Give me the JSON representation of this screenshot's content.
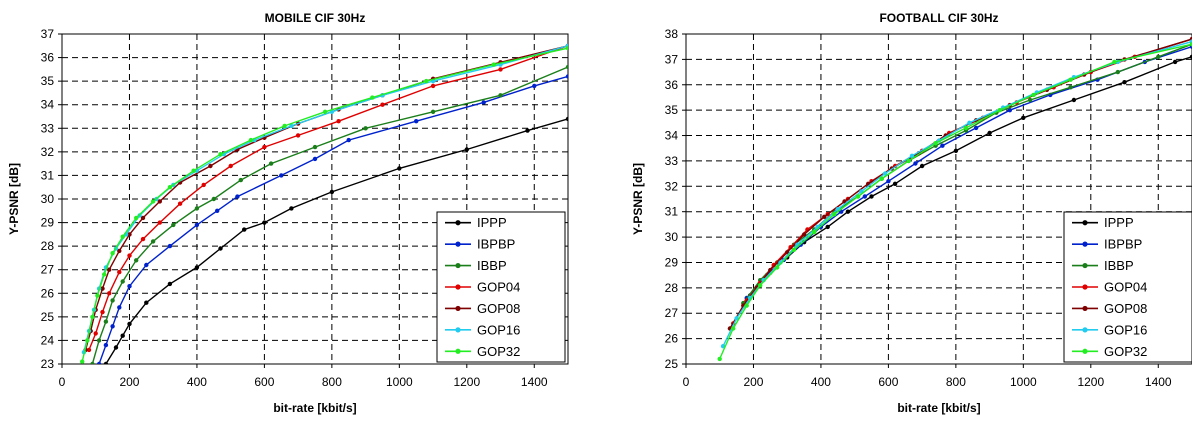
{
  "chart_data": [
    {
      "type": "line",
      "title": "MOBILE CIF 30Hz",
      "xlabel": "bit-rate [kbit/s]",
      "ylabel": "Y-PSNR [dB]",
      "xlim": [
        0,
        1500
      ],
      "ylim": [
        23,
        37
      ],
      "xticks": [
        0,
        200,
        400,
        600,
        800,
        1000,
        1200,
        1400
      ],
      "yticks": [
        23,
        24,
        25,
        26,
        27,
        28,
        29,
        30,
        31,
        32,
        33,
        34,
        35,
        36,
        37
      ],
      "grid": true,
      "legend_position": "bottom-right",
      "series": [
        {
          "name": "IPPP",
          "color": "#000000",
          "points": [
            [
              130,
              23
            ],
            [
              160,
              23.7
            ],
            [
              180,
              24.2
            ],
            [
              200,
              24.7
            ],
            [
              250,
              25.6
            ],
            [
              320,
              26.4
            ],
            [
              400,
              27.1
            ],
            [
              470,
              27.9
            ],
            [
              540,
              28.7
            ],
            [
              600,
              29.0
            ],
            [
              680,
              29.6
            ],
            [
              800,
              30.3
            ],
            [
              1000,
              31.3
            ],
            [
              1200,
              32.1
            ],
            [
              1380,
              32.9
            ],
            [
              1500,
              33.4
            ]
          ]
        },
        {
          "name": "IBPBP",
          "color": "#0022cc",
          "points": [
            [
              110,
              23
            ],
            [
              130,
              23.8
            ],
            [
              150,
              24.6
            ],
            [
              170,
              25.4
            ],
            [
              200,
              26.3
            ],
            [
              250,
              27.2
            ],
            [
              320,
              28.0
            ],
            [
              400,
              28.9
            ],
            [
              460,
              29.5
            ],
            [
              520,
              30.1
            ],
            [
              650,
              31.0
            ],
            [
              750,
              31.7
            ],
            [
              850,
              32.5
            ],
            [
              1050,
              33.3
            ],
            [
              1250,
              34.1
            ],
            [
              1400,
              34.8
            ],
            [
              1500,
              35.2
            ]
          ]
        },
        {
          "name": "IBBP",
          "color": "#1a7f1a",
          "points": [
            [
              90,
              23
            ],
            [
              110,
              24.0
            ],
            [
              130,
              24.8
            ],
            [
              150,
              25.7
            ],
            [
              180,
              26.5
            ],
            [
              220,
              27.4
            ],
            [
              270,
              28.2
            ],
            [
              330,
              28.9
            ],
            [
              400,
              29.6
            ],
            [
              450,
              30.0
            ],
            [
              530,
              30.8
            ],
            [
              620,
              31.5
            ],
            [
              750,
              32.2
            ],
            [
              900,
              33.0
            ],
            [
              1100,
              33.7
            ],
            [
              1300,
              34.4
            ],
            [
              1500,
              35.6
            ]
          ]
        },
        {
          "name": "GOP04",
          "color": "#e00000",
          "points": [
            [
              80,
              23.6
            ],
            [
              100,
              24.3
            ],
            [
              120,
              25.2
            ],
            [
              140,
              26.0
            ],
            [
              170,
              26.9
            ],
            [
              200,
              27.6
            ],
            [
              240,
              28.3
            ],
            [
              290,
              29.0
            ],
            [
              350,
              29.8
            ],
            [
              420,
              30.6
            ],
            [
              500,
              31.4
            ],
            [
              600,
              32.2
            ],
            [
              700,
              32.7
            ],
            [
              820,
              33.3
            ],
            [
              950,
              34.0
            ],
            [
              1100,
              34.8
            ],
            [
              1300,
              35.5
            ],
            [
              1500,
              36.5
            ]
          ]
        },
        {
          "name": "GOP08",
          "color": "#7f0000",
          "points": [
            [
              70,
              23.6
            ],
            [
              85,
              24.4
            ],
            [
              100,
              25.3
            ],
            [
              120,
              26.2
            ],
            [
              140,
              27.0
            ],
            [
              170,
              27.8
            ],
            [
              200,
              28.5
            ],
            [
              240,
              29.2
            ],
            [
              290,
              29.9
            ],
            [
              350,
              30.7
            ],
            [
              440,
              31.4
            ],
            [
              520,
              32.1
            ],
            [
              600,
              32.6
            ],
            [
              700,
              33.2
            ],
            [
              820,
              33.8
            ],
            [
              950,
              34.4
            ],
            [
              1100,
              35.1
            ],
            [
              1300,
              35.8
            ],
            [
              1500,
              36.5
            ]
          ]
        },
        {
          "name": "GOP16",
          "color": "#22ccee",
          "points": [
            [
              65,
              23.5
            ],
            [
              80,
              24.4
            ],
            [
              95,
              25.3
            ],
            [
              110,
              26.2
            ],
            [
              130,
              27.1
            ],
            [
              160,
              27.9
            ],
            [
              190,
              28.5
            ],
            [
              230,
              29.3
            ],
            [
              280,
              30.0
            ],
            [
              330,
              30.6
            ],
            [
              400,
              31.2
            ],
            [
              480,
              31.9
            ],
            [
              570,
              32.5
            ],
            [
              680,
              33.1
            ],
            [
              800,
              33.7
            ],
            [
              950,
              34.4
            ],
            [
              1100,
              35.0
            ],
            [
              1300,
              35.7
            ],
            [
              1500,
              36.5
            ]
          ]
        },
        {
          "name": "GOP32",
          "color": "#22ee22",
          "points": [
            [
              60,
              23.1
            ],
            [
              75,
              24.0
            ],
            [
              90,
              25.0
            ],
            [
              105,
              25.9
            ],
            [
              125,
              26.8
            ],
            [
              150,
              27.7
            ],
            [
              180,
              28.4
            ],
            [
              220,
              29.2
            ],
            [
              270,
              29.9
            ],
            [
              320,
              30.5
            ],
            [
              390,
              31.2
            ],
            [
              470,
              31.9
            ],
            [
              560,
              32.5
            ],
            [
              660,
              33.1
            ],
            [
              780,
              33.7
            ],
            [
              920,
              34.3
            ],
            [
              1080,
              35.0
            ],
            [
              1280,
              35.7
            ],
            [
              1500,
              36.4
            ]
          ]
        }
      ]
    },
    {
      "type": "line",
      "title": "FOOTBALL CIF 30Hz",
      "xlabel": "bit-rate [kbit/s]",
      "ylabel": "Y-PSNR [dB]",
      "xlim": [
        0,
        1500
      ],
      "ylim": [
        25,
        38
      ],
      "xticks": [
        0,
        200,
        400,
        600,
        800,
        1000,
        1200,
        1400
      ],
      "yticks": [
        25,
        26,
        27,
        28,
        29,
        30,
        31,
        32,
        33,
        34,
        35,
        36,
        37,
        38
      ],
      "grid": true,
      "legend_position": "bottom-right",
      "series": [
        {
          "name": "IPPP",
          "color": "#000000",
          "points": [
            [
              190,
              27.7
            ],
            [
              250,
              28.6
            ],
            [
              300,
              29.2
            ],
            [
              350,
              29.8
            ],
            [
              420,
              30.4
            ],
            [
              480,
              31.0
            ],
            [
              550,
              31.6
            ],
            [
              620,
              32.1
            ],
            [
              700,
              32.8
            ],
            [
              800,
              33.4
            ],
            [
              900,
              34.1
            ],
            [
              1000,
              34.7
            ],
            [
              1150,
              35.4
            ],
            [
              1300,
              36.1
            ],
            [
              1450,
              36.9
            ],
            [
              1500,
              37.1
            ]
          ]
        },
        {
          "name": "IBPBP",
          "color": "#0022cc",
          "points": [
            [
              180,
              27.6
            ],
            [
              240,
              28.5
            ],
            [
              290,
              29.1
            ],
            [
              340,
              29.7
            ],
            [
              400,
              30.4
            ],
            [
              460,
              31.0
            ],
            [
              530,
              31.6
            ],
            [
              600,
              32.2
            ],
            [
              680,
              32.9
            ],
            [
              760,
              33.6
            ],
            [
              860,
              34.3
            ],
            [
              960,
              35.0
            ],
            [
              1080,
              35.6
            ],
            [
              1220,
              36.2
            ],
            [
              1360,
              36.9
            ],
            [
              1500,
              37.5
            ]
          ]
        },
        {
          "name": "IBBP",
          "color": "#1a7f1a",
          "points": [
            [
              170,
              27.4
            ],
            [
              220,
              28.3
            ],
            [
              270,
              29.0
            ],
            [
              320,
              29.7
            ],
            [
              380,
              30.3
            ],
            [
              440,
              31.0
            ],
            [
              510,
              31.6
            ],
            [
              580,
              32.3
            ],
            [
              660,
              33.0
            ],
            [
              740,
              33.6
            ],
            [
              830,
              34.2
            ],
            [
              920,
              34.9
            ],
            [
              1020,
              35.4
            ],
            [
              1140,
              35.9
            ],
            [
              1280,
              36.5
            ],
            [
              1400,
              37.1
            ],
            [
              1500,
              37.6
            ]
          ]
        },
        {
          "name": "GOP04",
          "color": "#e00000",
          "points": [
            [
              140,
              26.6
            ],
            [
              180,
              27.5
            ],
            [
              220,
              28.2
            ],
            [
              260,
              28.9
            ],
            [
              310,
              29.6
            ],
            [
              360,
              30.3
            ],
            [
              420,
              30.9
            ],
            [
              480,
              31.5
            ],
            [
              550,
              32.2
            ],
            [
              620,
              32.8
            ],
            [
              700,
              33.4
            ],
            [
              780,
              34.1
            ],
            [
              880,
              34.7
            ],
            [
              980,
              35.3
            ],
            [
              1090,
              35.9
            ],
            [
              1200,
              36.5
            ],
            [
              1330,
              37.1
            ],
            [
              1500,
              37.8
            ]
          ]
        },
        {
          "name": "GOP08",
          "color": "#7f0000",
          "points": [
            [
              130,
              26.4
            ],
            [
              170,
              27.3
            ],
            [
              210,
              28.0
            ],
            [
              250,
              28.7
            ],
            [
              300,
              29.4
            ],
            [
              350,
              30.1
            ],
            [
              410,
              30.8
            ],
            [
              470,
              31.4
            ],
            [
              540,
              32.1
            ],
            [
              610,
              32.7
            ],
            [
              690,
              33.3
            ],
            [
              770,
              34.0
            ],
            [
              860,
              34.6
            ],
            [
              960,
              35.2
            ],
            [
              1070,
              35.8
            ],
            [
              1180,
              36.4
            ],
            [
              1300,
              37.0
            ],
            [
              1500,
              37.8
            ]
          ]
        },
        {
          "name": "GOP16",
          "color": "#22ccee",
          "points": [
            [
              110,
              25.7
            ],
            [
              150,
              26.8
            ],
            [
              190,
              27.6
            ],
            [
              230,
              28.3
            ],
            [
              280,
              29.0
            ],
            [
              330,
              29.7
            ],
            [
              390,
              30.4
            ],
            [
              450,
              31.1
            ],
            [
              520,
              31.8
            ],
            [
              590,
              32.5
            ],
            [
              670,
              33.2
            ],
            [
              750,
              33.8
            ],
            [
              840,
              34.5
            ],
            [
              940,
              35.1
            ],
            [
              1040,
              35.7
            ],
            [
              1150,
              36.3
            ],
            [
              1280,
              36.9
            ],
            [
              1500,
              37.7
            ]
          ]
        },
        {
          "name": "GOP32",
          "color": "#22ee22",
          "points": [
            [
              100,
              25.2
            ],
            [
              140,
              26.4
            ],
            [
              180,
              27.3
            ],
            [
              220,
              28.1
            ],
            [
              270,
              28.8
            ],
            [
              320,
              29.5
            ],
            [
              380,
              30.2
            ],
            [
              440,
              30.9
            ],
            [
              510,
              31.6
            ],
            [
              580,
              32.3
            ],
            [
              660,
              33.0
            ],
            [
              740,
              33.7
            ],
            [
              830,
              34.3
            ],
            [
              930,
              35.0
            ],
            [
              1030,
              35.6
            ],
            [
              1140,
              36.2
            ],
            [
              1270,
              36.9
            ],
            [
              1500,
              37.6
            ]
          ]
        }
      ]
    }
  ]
}
